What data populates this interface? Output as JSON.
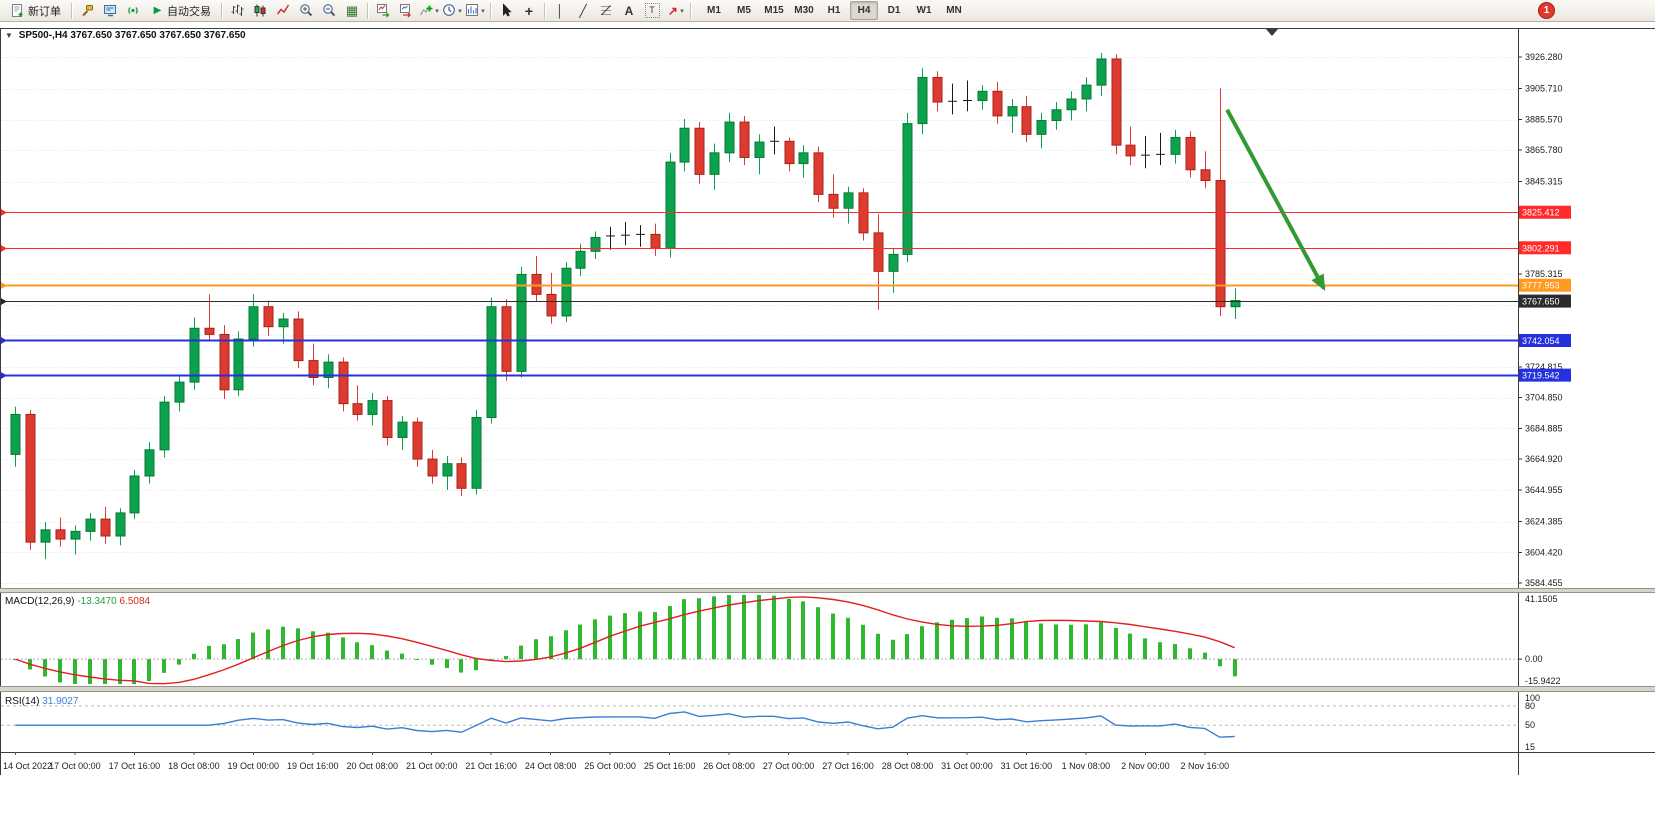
{
  "toolbar": {
    "new_order_label": "新订单",
    "autotrade_label": "自动交易",
    "timeframe_labels": [
      "M1",
      "M5",
      "M15",
      "M30",
      "H1",
      "H4",
      "D1",
      "W1",
      "MN"
    ],
    "active_timeframe": "H4",
    "notification_count": "1",
    "icons": {
      "one_click": "▼",
      "play": "▶",
      "dropdown": "▾",
      "tile": "▦",
      "crosshair": "+",
      "vline": "│",
      "trendline": "╱",
      "text_tool": "A",
      "label_tool": "T",
      "arrow_tool": "↗"
    }
  },
  "chart": {
    "symbol_period": "SP500-,H4",
    "ohlc": "3767.650 3767.650 3767.650 3767.650",
    "current_price": "3767.650",
    "colors": {
      "bull": "#0ca24d",
      "bull_dark": "#067a36",
      "bear": "#dd3b30",
      "bear_dark": "#a82318",
      "doji": "#1a1a1a",
      "grid": "#e4e4e4",
      "frame": "#3c3c3c"
    },
    "lines": [
      {
        "label": "3825.412",
        "price": 3825.412,
        "color": "#ff2a2a",
        "width": 1
      },
      {
        "label": "3802.291",
        "price": 3802.291,
        "color": "#ff2a2a",
        "width": 1
      },
      {
        "label": "3777.953",
        "price": 3777.953,
        "color": "#ff9a1f",
        "width": 2
      },
      {
        "label": "3767.650",
        "price": 3767.65,
        "color": "#2b2b2b",
        "width": 1,
        "is_current_price": true
      },
      {
        "label": "3742.054",
        "price": 3742.054,
        "color": "#2431dd",
        "width": 2
      },
      {
        "label": "3719.542",
        "price": 3719.542,
        "color": "#2431dd",
        "width": 2
      }
    ],
    "annotation": {
      "type": "arrow",
      "color": "#339933",
      "from": {
        "bar_index": 81.5,
        "price": 3892
      },
      "to": {
        "bar_index": 88,
        "price": 3776
      }
    }
  },
  "indicators": {
    "macd": {
      "name": "MACD(12,26,9)",
      "value": "-13.3470",
      "signal_value": "6.5084",
      "params": [
        12,
        26,
        9
      ],
      "axis_labels": [
        "41.1505",
        "0.00",
        "-15.9422"
      ],
      "range": [
        -15.9422,
        41.1505
      ],
      "histogram_color": "#2eb82e",
      "signal_color": "#e02020"
    },
    "rsi": {
      "name": "RSI(14)",
      "value": "31.9027",
      "period": 14,
      "axis_labels": [
        "100",
        "80",
        "50",
        "15"
      ],
      "range": [
        10,
        100
      ],
      "levels": [
        80,
        50
      ],
      "line_color": "#3a7fd5"
    }
  },
  "chart_data": {
    "type": "candlestick",
    "symbol": "SP500-",
    "timeframe": "H4",
    "current_price": 3767.65,
    "y_axis_range": [
      3581,
      3945
    ],
    "price_axis_labels": [
      "3926.280",
      "3905.710",
      "3885.570",
      "3865.780",
      "3845.315",
      "3825.350",
      "3805.385",
      "3785.315",
      "3765.350",
      "3745.385",
      "3724.815",
      "3704.850",
      "3684.885",
      "3664.920",
      "3644.955",
      "3624.385",
      "3604.420",
      "3584.455"
    ],
    "time_axis_labels": [
      "14 Oct 2022",
      "17 Oct 00:00",
      "17 Oct 16:00",
      "18 Oct 08:00",
      "19 Oct 00:00",
      "19 Oct 16:00",
      "20 Oct 08:00",
      "21 Oct 00:00",
      "21 Oct 16:00",
      "24 Oct 08:00",
      "25 Oct 00:00",
      "25 Oct 16:00",
      "26 Oct 08:00",
      "27 Oct 00:00",
      "27 Oct 16:00",
      "28 Oct 08:00",
      "31 Oct 00:00",
      "31 Oct 16:00",
      "1 Nov 08:00",
      "2 Nov 00:00",
      "2 Nov 16:00"
    ],
    "bars_per_time_label": 4,
    "horizontal_levels": [
      3825.412,
      3802.291,
      3777.953,
      3767.65,
      3742.054,
      3719.542
    ],
    "candles": [
      [
        3668,
        3699,
        3660,
        3694
      ],
      [
        3694,
        3697,
        3606,
        3611
      ],
      [
        3611,
        3624,
        3600,
        3619
      ],
      [
        3619,
        3627,
        3608,
        3613
      ],
      [
        3613,
        3622,
        3603,
        3618
      ],
      [
        3618,
        3630,
        3612,
        3626
      ],
      [
        3626,
        3634,
        3610,
        3615
      ],
      [
        3615,
        3633,
        3609,
        3630
      ],
      [
        3630,
        3658,
        3626,
        3654
      ],
      [
        3654,
        3676,
        3649,
        3671
      ],
      [
        3671,
        3706,
        3666,
        3702
      ],
      [
        3702,
        3720,
        3696,
        3715
      ],
      [
        3715,
        3757,
        3710,
        3750
      ],
      [
        3750,
        3772,
        3742,
        3746
      ],
      [
        3746,
        3752,
        3704,
        3710
      ],
      [
        3710,
        3748,
        3706,
        3743
      ],
      [
        3743,
        3772,
        3738,
        3764
      ],
      [
        3764,
        3768,
        3745,
        3751
      ],
      [
        3751,
        3760,
        3740,
        3756
      ],
      [
        3756,
        3761,
        3724,
        3729
      ],
      [
        3729,
        3740,
        3713,
        3718
      ],
      [
        3718,
        3733,
        3711,
        3728
      ],
      [
        3728,
        3731,
        3696,
        3701
      ],
      [
        3701,
        3713,
        3690,
        3694
      ],
      [
        3694,
        3708,
        3687,
        3703
      ],
      [
        3703,
        3706,
        3674,
        3679
      ],
      [
        3679,
        3693,
        3671,
        3689
      ],
      [
        3689,
        3692,
        3660,
        3665
      ],
      [
        3665,
        3671,
        3649,
        3654
      ],
      [
        3654,
        3667,
        3645,
        3662
      ],
      [
        3662,
        3666,
        3641,
        3646
      ],
      [
        3646,
        3697,
        3642,
        3692
      ],
      [
        3692,
        3770,
        3688,
        3764
      ],
      [
        3764,
        3769,
        3716,
        3722
      ],
      [
        3722,
        3790,
        3718,
        3785
      ],
      [
        3785,
        3797,
        3767,
        3772
      ],
      [
        3772,
        3786,
        3753,
        3758
      ],
      [
        3758,
        3793,
        3754,
        3789
      ],
      [
        3789,
        3805,
        3784,
        3800
      ],
      [
        3800,
        3813,
        3795,
        3809
      ],
      [
        3809,
        3816,
        3801,
        3810
      ],
      [
        3810,
        3819,
        3804,
        3810.5
      ],
      [
        3810.5,
        3817,
        3803,
        3811
      ],
      [
        3811,
        3818,
        3797,
        3802
      ],
      [
        3802,
        3864,
        3796,
        3858
      ],
      [
        3858,
        3886,
        3852,
        3880
      ],
      [
        3880,
        3884,
        3844,
        3850
      ],
      [
        3850,
        3870,
        3840,
        3864
      ],
      [
        3864,
        3890,
        3858,
        3884
      ],
      [
        3884,
        3888,
        3856,
        3861
      ],
      [
        3861,
        3876,
        3850,
        3871
      ],
      [
        3871,
        3881,
        3863,
        3871.5
      ],
      [
        3871.5,
        3874,
        3852,
        3857
      ],
      [
        3857,
        3869,
        3848,
        3864
      ],
      [
        3864,
        3868,
        3832,
        3837
      ],
      [
        3837,
        3850,
        3822,
        3828
      ],
      [
        3828,
        3842,
        3818,
        3838
      ],
      [
        3838,
        3841,
        3807,
        3812
      ],
      [
        3812,
        3824,
        3762,
        3787
      ],
      [
        3787,
        3802,
        3773,
        3798
      ],
      [
        3798,
        3890,
        3793,
        3883
      ],
      [
        3883,
        3919,
        3876,
        3913
      ],
      [
        3913,
        3917,
        3891,
        3897
      ],
      [
        3897,
        3909,
        3889,
        3897.5
      ],
      [
        3897.5,
        3911,
        3891,
        3898
      ],
      [
        3898,
        3908,
        3892,
        3904
      ],
      [
        3904,
        3910,
        3883,
        3888
      ],
      [
        3888,
        3899,
        3877,
        3894
      ],
      [
        3894,
        3901,
        3871,
        3876
      ],
      [
        3876,
        3890,
        3867,
        3885
      ],
      [
        3885,
        3897,
        3879,
        3892
      ],
      [
        3892,
        3904,
        3885,
        3899
      ],
      [
        3899,
        3913,
        3891,
        3908
      ],
      [
        3908,
        3929,
        3901,
        3925
      ],
      [
        3925,
        3928,
        3863,
        3869
      ],
      [
        3869,
        3881,
        3856,
        3862
      ],
      [
        3862,
        3875,
        3854,
        3862.5
      ],
      [
        3862.5,
        3877,
        3856,
        3863
      ],
      [
        3863,
        3879,
        3857,
        3874
      ],
      [
        3874,
        3878,
        3848,
        3853
      ],
      [
        3853,
        3865,
        3841,
        3846
      ],
      [
        3846,
        3906,
        3758,
        3764
      ],
      [
        3764,
        3776,
        3756,
        3768
      ]
    ]
  }
}
